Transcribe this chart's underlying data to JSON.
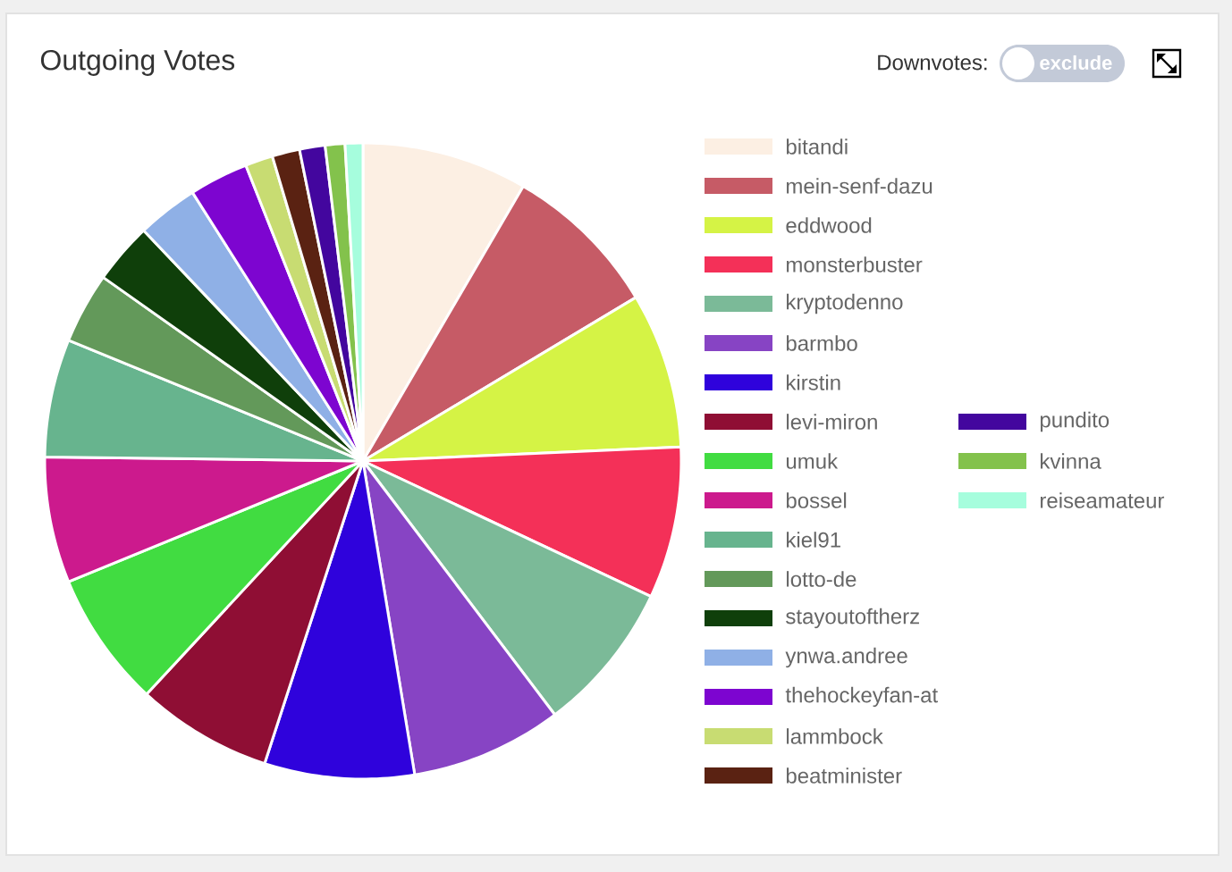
{
  "chart_data": {
    "type": "pie",
    "title": "Outgoing Votes",
    "categories": [
      "bitandi",
      "mein-senf-dazu",
      "eddwood",
      "monsterbuster",
      "kryptodenno",
      "barmbo",
      "kirstin",
      "levi-miron",
      "umuk",
      "bossel",
      "kiel91",
      "lotto-de",
      "stayoutoftherz",
      "ynwa.andree",
      "thehockeyfan-at",
      "lammbock",
      "beatminister",
      "pundito",
      "kvinna",
      "reiseamateur"
    ],
    "values": [
      8.4,
      8.0,
      7.9,
      7.7,
      7.7,
      7.7,
      7.6,
      6.9,
      6.9,
      6.4,
      6.0,
      3.6,
      3.1,
      3.1,
      3.0,
      1.4,
      1.4,
      1.3,
      1.0,
      0.9
    ],
    "colors": [
      "#fcefe3",
      "#c65b66",
      "#d5f345",
      "#f43058",
      "#7bba98",
      "#8744c4",
      "#2f02dc",
      "#8f0e34",
      "#41dc41",
      "#cc1a8d",
      "#67b48e",
      "#63995a",
      "#0f3f0a",
      "#8fb0e6",
      "#7d05d0",
      "#c8dc72",
      "#5a2212",
      "#43069e",
      "#83c24c",
      "#a6fddd"
    ],
    "legend": "right",
    "annotations": [
      "Downvotes:",
      "exclude"
    ]
  }
}
